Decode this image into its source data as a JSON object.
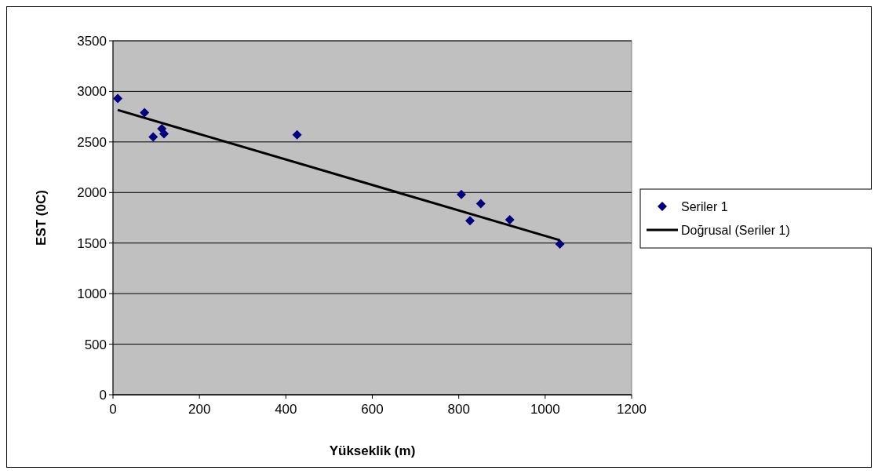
{
  "chart_data": {
    "type": "scatter",
    "xlabel": "Yükseklik (m)",
    "ylabel": "EST (0C)",
    "xlim": [
      0,
      1200
    ],
    "xticks": [
      0,
      200,
      400,
      600,
      800,
      1000,
      1200
    ],
    "ylim": [
      0,
      3500
    ],
    "yticks": [
      0,
      500,
      1000,
      1500,
      2000,
      2500,
      3000,
      3500
    ],
    "grid": "y",
    "legend": "right",
    "series": [
      {
        "name": "Seriler 1",
        "type": "scatter",
        "marker": "diamond",
        "color": "#000080",
        "x": [
          11,
          73,
          93,
          113,
          118,
          426,
          806,
          826,
          851,
          918,
          1034
        ],
        "values": [
          2930,
          2790,
          2550,
          2630,
          2580,
          2570,
          1980,
          1720,
          1890,
          1730,
          1490
        ]
      },
      {
        "name": "Doğrusal (Seriler 1)",
        "type": "line",
        "marker": "none",
        "line_style": "solid",
        "color": "#000000",
        "x": [
          11,
          1034
        ],
        "values": [
          2816,
          1528
        ]
      }
    ]
  }
}
